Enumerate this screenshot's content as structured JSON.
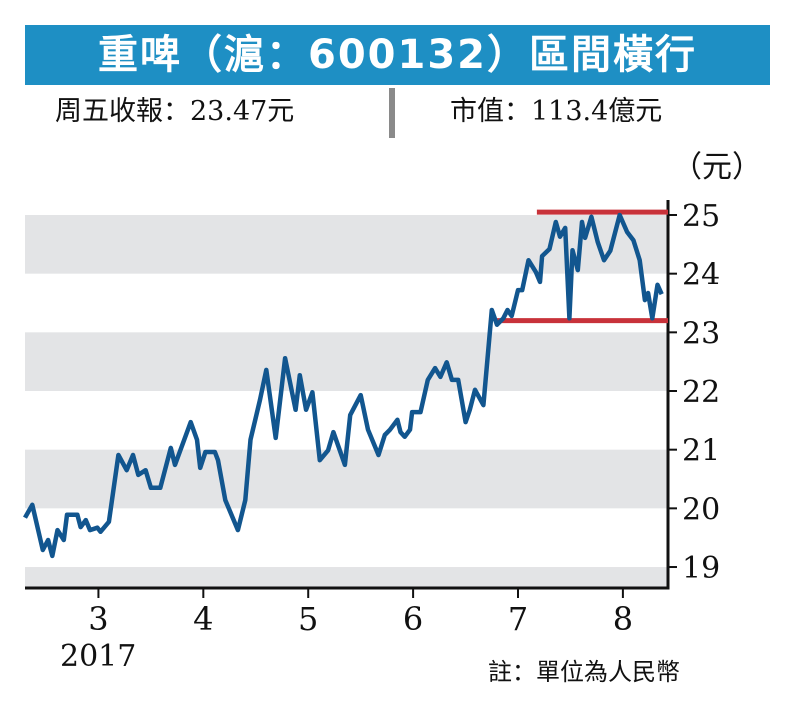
{
  "header": {
    "title": "重啤（滬：600132）區間橫行",
    "close_price": "周五收報：23.47元",
    "market_cap": "市值：113.4億元"
  },
  "chart_data": {
    "type": "line",
    "title": "重啤（滬：600132）區間橫行",
    "ylabel": "（元）",
    "xlabel": "",
    "year_label": "2017",
    "note": "註：單位為人民幣",
    "ylim": [
      18.6,
      25.25
    ],
    "xlim": [
      2.3,
      8.43
    ],
    "yticks": [
      25,
      24,
      23,
      22,
      21,
      20,
      19
    ],
    "ytick_labels": [
      "25",
      "24",
      "23",
      "22",
      "21",
      "20",
      "19"
    ],
    "xticks": [
      3,
      4,
      5,
      6,
      7,
      8
    ],
    "xtick_labels": [
      "3",
      "4",
      "5",
      "6",
      "7",
      "8"
    ],
    "grid_bands": [
      [
        24,
        25
      ],
      [
        22,
        23
      ],
      [
        20,
        21
      ],
      [
        18.6,
        19
      ]
    ],
    "colors": {
      "line": "#12568f",
      "range": "#c8323a",
      "band": "#e3e4e6",
      "title_bg": "#1e8fc4"
    },
    "range_lines": [
      {
        "name": "resistance",
        "value": 25.05,
        "x_start": 7.18,
        "x_end": 8.43
      },
      {
        "name": "support",
        "value": 23.2,
        "x_start": 6.78,
        "x_end": 8.43
      }
    ],
    "series": [
      {
        "name": "重啤股價",
        "points": [
          [
            2.3,
            19.84
          ],
          [
            2.37,
            20.06
          ],
          [
            2.47,
            19.29
          ],
          [
            2.52,
            19.46
          ],
          [
            2.56,
            19.19
          ],
          [
            2.61,
            19.63
          ],
          [
            2.67,
            19.46
          ],
          [
            2.7,
            19.89
          ],
          [
            2.8,
            19.89
          ],
          [
            2.83,
            19.68
          ],
          [
            2.88,
            19.8
          ],
          [
            2.92,
            19.63
          ],
          [
            2.99,
            19.67
          ],
          [
            3.02,
            19.6
          ],
          [
            3.1,
            19.77
          ],
          [
            3.19,
            20.91
          ],
          [
            3.27,
            20.65
          ],
          [
            3.33,
            20.91
          ],
          [
            3.38,
            20.57
          ],
          [
            3.45,
            20.65
          ],
          [
            3.5,
            20.35
          ],
          [
            3.59,
            20.35
          ],
          [
            3.69,
            21.03
          ],
          [
            3.73,
            20.74
          ],
          [
            3.88,
            21.47
          ],
          [
            3.94,
            21.17
          ],
          [
            3.97,
            20.69
          ],
          [
            4.02,
            20.96
          ],
          [
            4.11,
            20.96
          ],
          [
            4.14,
            20.82
          ],
          [
            4.21,
            20.14
          ],
          [
            4.33,
            19.63
          ],
          [
            4.4,
            20.14
          ],
          [
            4.45,
            21.17
          ],
          [
            4.54,
            21.85
          ],
          [
            4.6,
            22.36
          ],
          [
            4.69,
            21.2
          ],
          [
            4.78,
            22.56
          ],
          [
            4.88,
            21.68
          ],
          [
            4.92,
            22.27
          ],
          [
            4.98,
            21.68
          ],
          [
            5.04,
            21.98
          ],
          [
            5.11,
            20.82
          ],
          [
            5.19,
            20.99
          ],
          [
            5.24,
            21.3
          ],
          [
            5.35,
            20.74
          ],
          [
            5.4,
            21.59
          ],
          [
            5.5,
            21.93
          ],
          [
            5.57,
            21.34
          ],
          [
            5.67,
            20.91
          ],
          [
            5.73,
            21.25
          ],
          [
            5.78,
            21.34
          ],
          [
            5.85,
            21.51
          ],
          [
            5.88,
            21.3
          ],
          [
            5.92,
            21.22
          ],
          [
            5.97,
            21.34
          ],
          [
            5.99,
            21.64
          ],
          [
            6.07,
            21.64
          ],
          [
            6.14,
            22.19
          ],
          [
            6.21,
            22.39
          ],
          [
            6.26,
            22.24
          ],
          [
            6.32,
            22.49
          ],
          [
            6.37,
            22.19
          ],
          [
            6.43,
            22.19
          ],
          [
            6.5,
            21.47
          ],
          [
            6.54,
            21.68
          ],
          [
            6.59,
            22.02
          ],
          [
            6.67,
            21.76
          ],
          [
            6.75,
            23.38
          ],
          [
            6.8,
            23.13
          ],
          [
            6.86,
            23.24
          ],
          [
            6.9,
            23.38
          ],
          [
            6.94,
            23.28
          ],
          [
            7.0,
            23.72
          ],
          [
            7.04,
            23.72
          ],
          [
            7.1,
            24.23
          ],
          [
            7.17,
            24.03
          ],
          [
            7.21,
            23.86
          ],
          [
            7.23,
            24.3
          ],
          [
            7.3,
            24.42
          ],
          [
            7.36,
            24.88
          ],
          [
            7.4,
            24.63
          ],
          [
            7.45,
            24.78
          ],
          [
            7.49,
            23.24
          ],
          [
            7.52,
            24.4
          ],
          [
            7.57,
            24.06
          ],
          [
            7.61,
            24.88
          ],
          [
            7.64,
            24.61
          ],
          [
            7.7,
            24.97
          ],
          [
            7.76,
            24.54
          ],
          [
            7.82,
            24.23
          ],
          [
            7.88,
            24.39
          ],
          [
            7.97,
            25.0
          ],
          [
            8.04,
            24.71
          ],
          [
            8.1,
            24.57
          ],
          [
            8.16,
            24.23
          ],
          [
            8.21,
            23.55
          ],
          [
            8.24,
            23.67
          ],
          [
            8.28,
            23.24
          ],
          [
            8.33,
            23.81
          ],
          [
            8.37,
            23.65
          ]
        ]
      }
    ]
  }
}
